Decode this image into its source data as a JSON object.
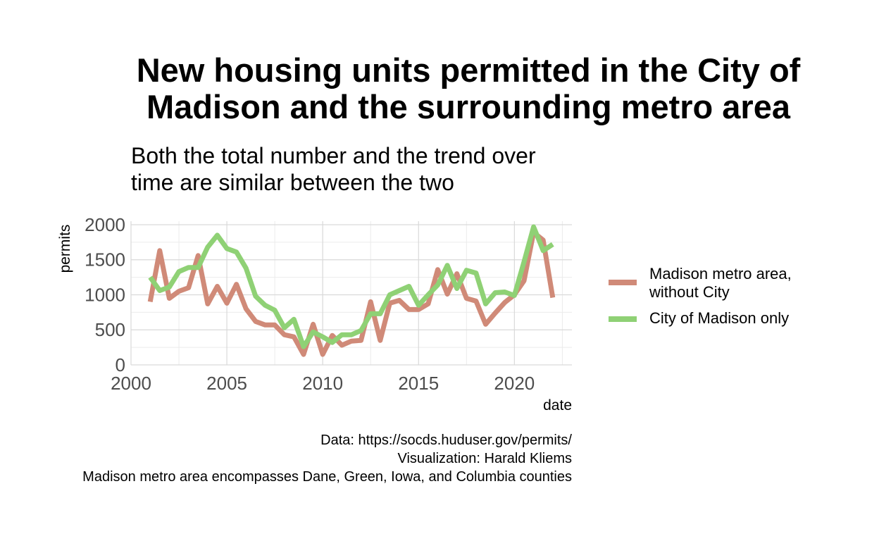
{
  "title_line1": "New housing units permitted in the City of",
  "title_line2": "Madison and the surrounding metro area",
  "subtitle_line1": "Both the total number and the trend over",
  "subtitle_line2": "time are similar between the two",
  "caption": {
    "line1": "Data: https://socds.huduser.gov/permits/",
    "line2": "Visualization: Harald Kliems",
    "line3": "Madison metro area encompasses Dane, Green, Iowa, and Columbia counties"
  },
  "chart_data": {
    "type": "line",
    "xlabel": "date",
    "ylabel": "permits",
    "xlim": [
      2000,
      2023
    ],
    "ylim": [
      0,
      2050
    ],
    "xticks": [
      2000,
      2005,
      2010,
      2015,
      2020
    ],
    "yticks": [
      0,
      500,
      1000,
      1500,
      2000
    ],
    "grid": true,
    "legend_position": "right",
    "series": [
      {
        "name": "Madison metro area, without City",
        "color": "#d08a78",
        "x": [
          2001.0,
          2001.5,
          2002.0,
          2002.5,
          2003.0,
          2003.5,
          2004.0,
          2004.5,
          2005.0,
          2005.5,
          2006.0,
          2006.5,
          2007.0,
          2007.5,
          2008.0,
          2008.5,
          2009.0,
          2009.5,
          2010.0,
          2010.5,
          2011.0,
          2011.5,
          2012.0,
          2012.5,
          2013.0,
          2013.5,
          2014.0,
          2014.5,
          2015.0,
          2015.5,
          2016.0,
          2016.5,
          2017.0,
          2017.5,
          2018.0,
          2018.5,
          2019.0,
          2019.5,
          2020.0,
          2020.5,
          2021.0,
          2021.5,
          2022.0
        ],
        "values": [
          900,
          1630,
          950,
          1050,
          1100,
          1560,
          870,
          1120,
          880,
          1150,
          800,
          620,
          570,
          570,
          430,
          400,
          150,
          580,
          150,
          420,
          280,
          340,
          350,
          900,
          350,
          880,
          920,
          790,
          790,
          870,
          1360,
          1010,
          1300,
          950,
          910,
          580,
          740,
          890,
          1000,
          1200,
          1890,
          1780,
          960
        ]
      },
      {
        "name": "City of Madison only",
        "color": "#8fd175",
        "x": [
          2001.0,
          2001.5,
          2002.0,
          2002.5,
          2003.0,
          2003.5,
          2004.0,
          2004.5,
          2005.0,
          2005.5,
          2006.0,
          2006.5,
          2007.0,
          2007.5,
          2008.0,
          2008.5,
          2009.0,
          2009.5,
          2010.0,
          2010.5,
          2011.0,
          2011.5,
          2012.0,
          2012.5,
          2013.0,
          2013.5,
          2014.0,
          2014.5,
          2015.0,
          2015.5,
          2016.0,
          2016.5,
          2017.0,
          2017.5,
          2018.0,
          2018.5,
          2019.0,
          2019.5,
          2020.0,
          2020.5,
          2021.0,
          2021.5,
          2022.0
        ],
        "values": [
          1250,
          1060,
          1110,
          1330,
          1390,
          1390,
          1680,
          1850,
          1660,
          1610,
          1380,
          980,
          850,
          780,
          530,
          650,
          260,
          470,
          400,
          320,
          430,
          430,
          490,
          730,
          730,
          1000,
          1060,
          1120,
          850,
          1000,
          1140,
          1420,
          1090,
          1350,
          1310,
          870,
          1030,
          1040,
          990,
          1470,
          1970,
          1630,
          1720
        ]
      }
    ]
  }
}
